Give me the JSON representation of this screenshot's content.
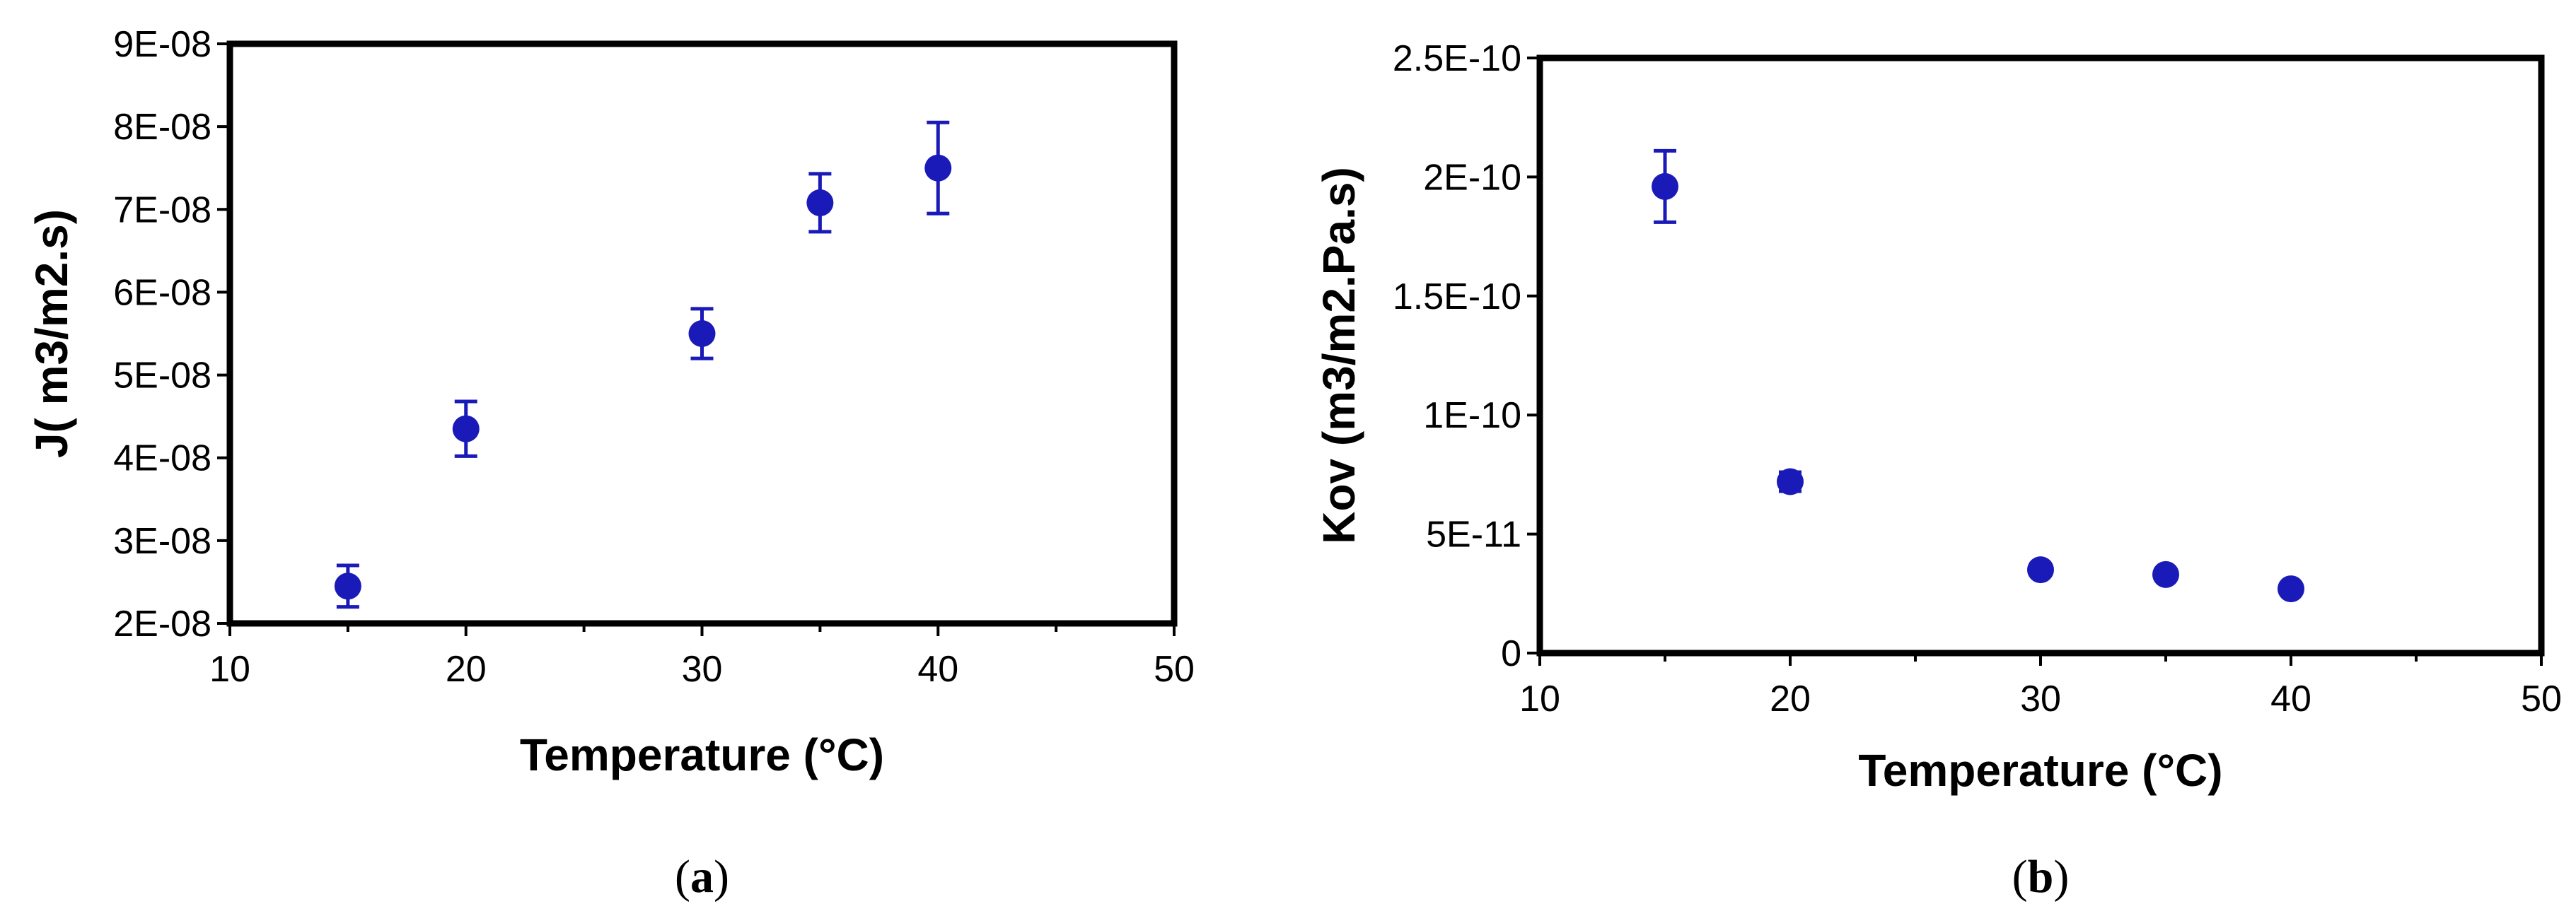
{
  "chart_data": [
    {
      "type": "scatter",
      "panel_label": "a",
      "xlabel": "Temperature (°C)",
      "ylabel": "J( m3/m2.s)",
      "xlim": [
        10,
        50
      ],
      "ylim": [
        2e-08,
        9e-08
      ],
      "x_ticks": [
        10,
        20,
        30,
        40,
        50
      ],
      "x_tick_labels": [
        "10",
        "20",
        "30",
        "40",
        "50"
      ],
      "y_ticks": [
        2e-08,
        3e-08,
        4e-08,
        5e-08,
        6e-08,
        7e-08,
        8e-08,
        9e-08
      ],
      "y_tick_labels": [
        "2E-08",
        "3E-08",
        "4E-08",
        "5E-08",
        "6E-08",
        "7E-08",
        "8E-08",
        "9E-08"
      ],
      "grid": false,
      "color": "#1a1ab8",
      "series": [
        {
          "x": [
            15,
            20,
            30,
            35,
            40
          ],
          "y": [
            2.45e-08,
            4.35e-08,
            5.5e-08,
            7.08e-08,
            7.5e-08
          ],
          "error": [
            2.5e-09,
            3.3e-09,
            3e-09,
            3.5e-09,
            5.5e-09
          ]
        }
      ]
    },
    {
      "type": "scatter",
      "panel_label": "b",
      "xlabel": "Temperature (°C)",
      "ylabel": "Kov (m3/m2.Pa.s)",
      "xlim": [
        10,
        50
      ],
      "ylim": [
        0,
        2.5e-10
      ],
      "x_ticks": [
        10,
        20,
        30,
        40,
        50
      ],
      "x_tick_labels": [
        "10",
        "20",
        "30",
        "40",
        "50"
      ],
      "y_ticks": [
        0,
        5e-11,
        1e-10,
        1.5e-10,
        2e-10,
        2.5e-10
      ],
      "y_tick_labels": [
        "0",
        "5E-11",
        "1E-10",
        "1.5E-10",
        "2E-10",
        "2.5E-10"
      ],
      "grid": false,
      "color": "#1a1ab8",
      "series": [
        {
          "x": [
            15,
            20,
            30,
            35,
            40
          ],
          "y": [
            1.96e-10,
            7.2e-11,
            3.5e-11,
            3.3e-11,
            2.7e-11
          ],
          "error": [
            1.5e-11,
            4e-12,
            2e-12,
            2e-12,
            2e-12
          ]
        }
      ]
    }
  ]
}
